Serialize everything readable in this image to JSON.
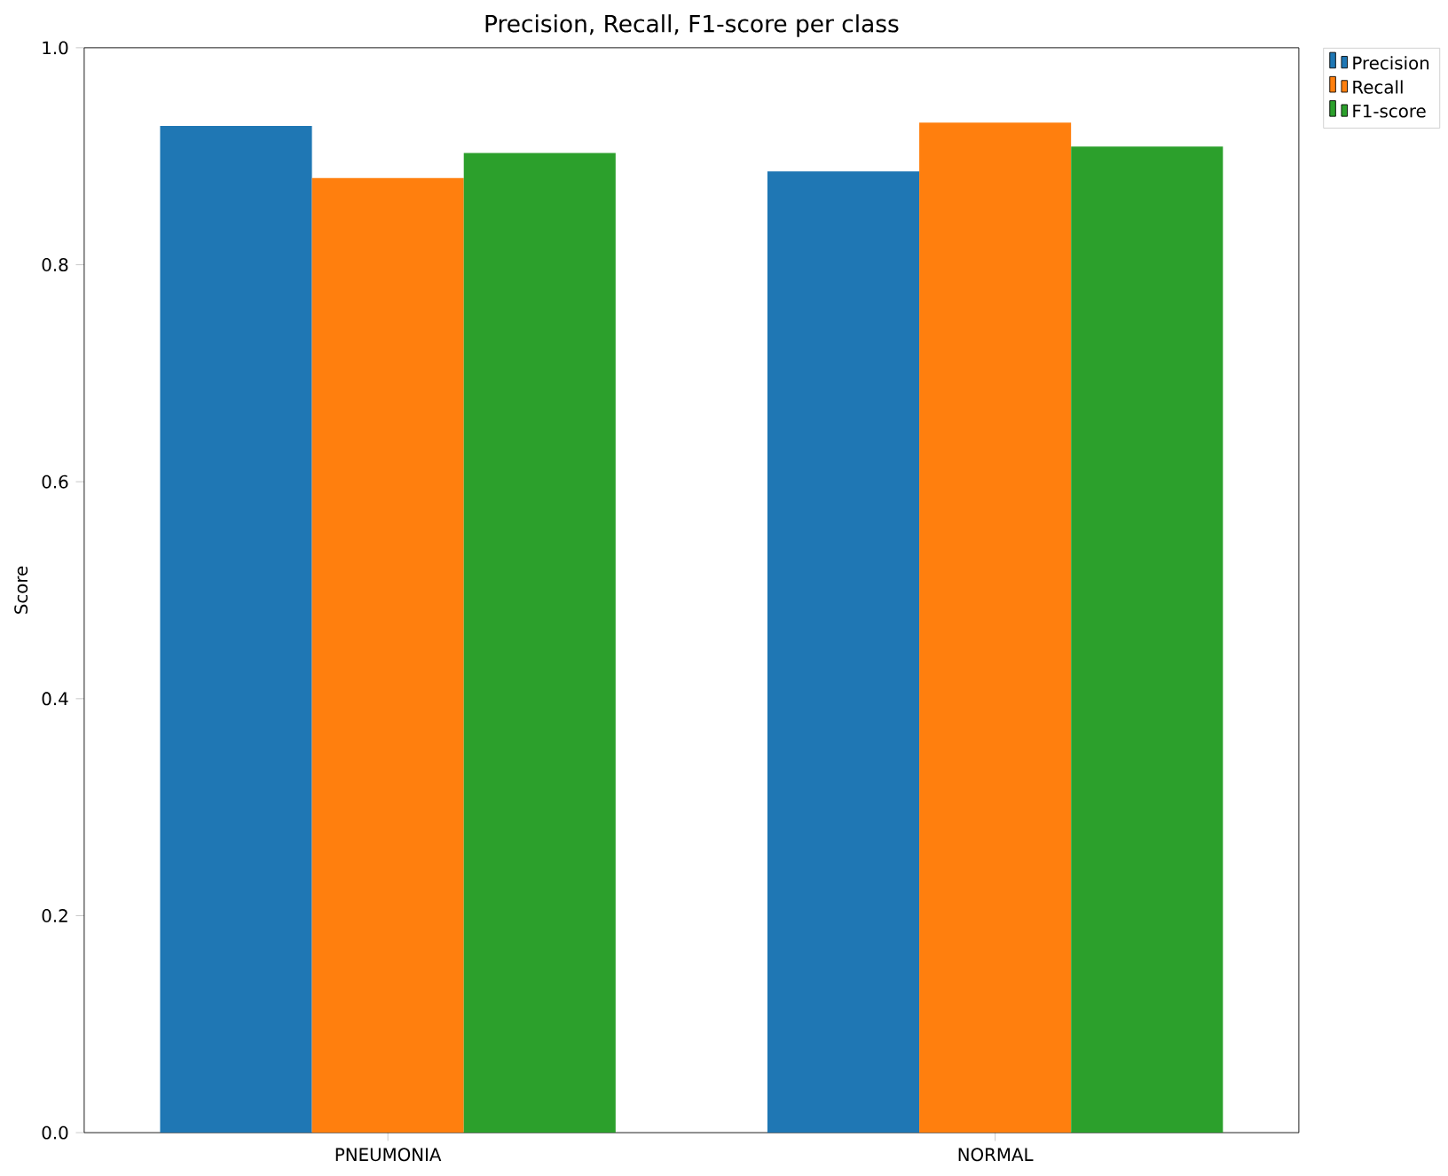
{
  "chart_data": {
    "type": "bar",
    "title": "Precision, Recall, F1-score per class",
    "ylabel": "Score",
    "categories": [
      "PNEUMONIA",
      "NORMAL"
    ],
    "series": [
      {
        "name": "Precision",
        "color": "#1f77b4",
        "values": [
          0.928,
          0.886
        ]
      },
      {
        "name": "Recall",
        "color": "#ff7f0e",
        "values": [
          0.88,
          0.931
        ]
      },
      {
        "name": "F1-score",
        "color": "#2ca02c",
        "values": [
          0.903,
          0.909
        ]
      }
    ],
    "ylim": [
      0,
      1.0
    ],
    "yticks": [
      {
        "value": 0,
        "label": "0.0"
      },
      {
        "value": 0.2,
        "label": "0.2"
      },
      {
        "value": 0.4,
        "label": "0.4"
      },
      {
        "value": 0.6,
        "label": "0.6"
      },
      {
        "value": 0.8,
        "label": "0.8"
      },
      {
        "value": 1.0,
        "label": "1.0"
      }
    ],
    "legend": "top right"
  }
}
